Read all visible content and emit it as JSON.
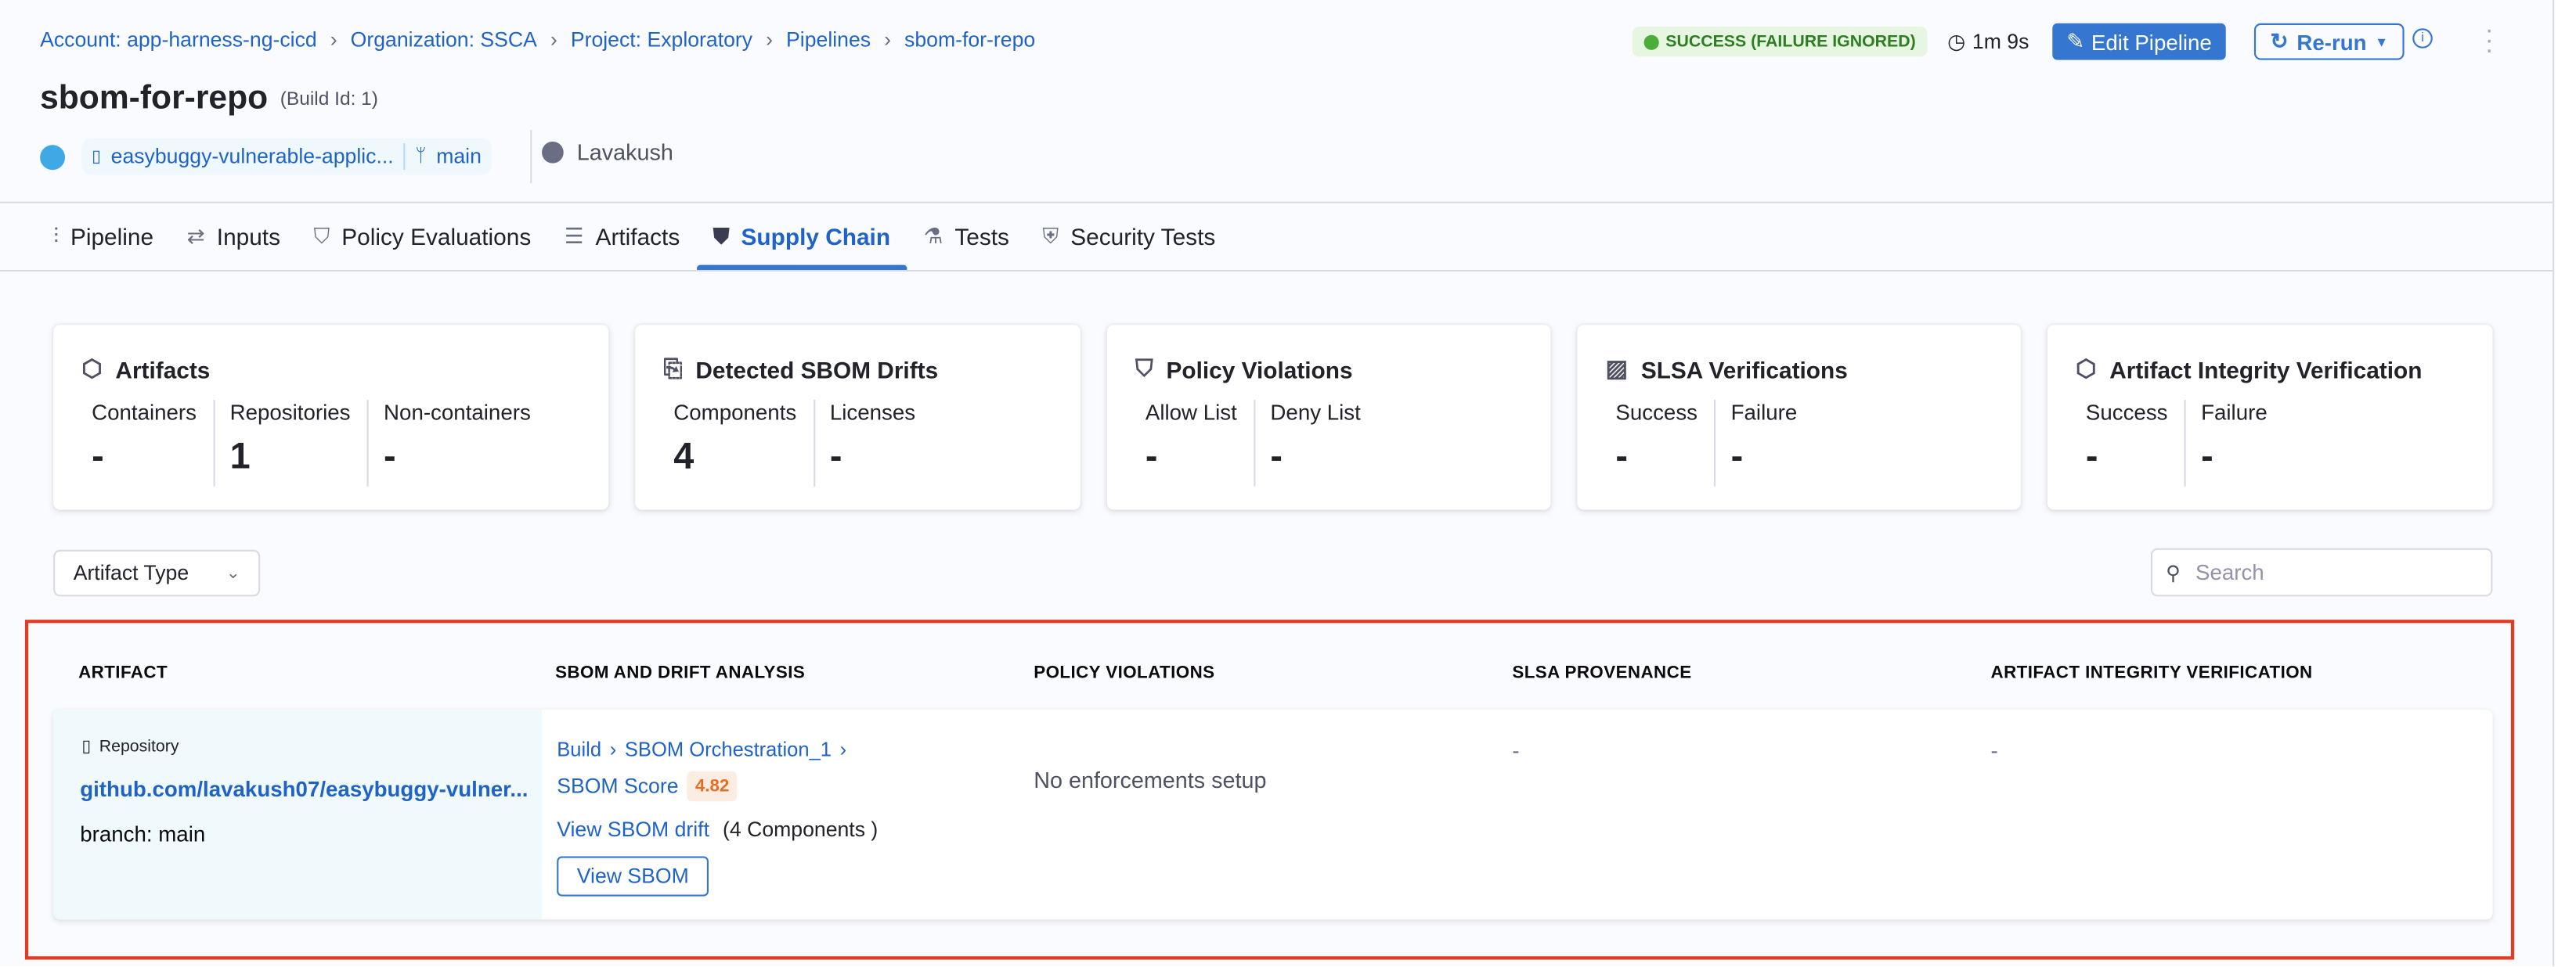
{
  "breadcrumb": [
    "Account: app-harness-ng-cicd",
    "Organization: SSCA",
    "Project: Exploratory",
    "Pipelines",
    "sbom-for-repo"
  ],
  "header": {
    "title": "sbom-for-repo",
    "build_id": "(Build Id: 1)",
    "repo": "easybuggy-vulnerable-applic...",
    "branch": "main",
    "user": "Lavakush",
    "status": "SUCCESS (FAILURE IGNORED)",
    "duration": "1m 9s",
    "edit_label": "Edit Pipeline",
    "rerun_label": "Re-run"
  },
  "tabs": [
    {
      "label": "Pipeline",
      "icon": "pipeline-icon"
    },
    {
      "label": "Inputs",
      "icon": "inputs-icon"
    },
    {
      "label": "Policy Evaluations",
      "icon": "shield-check-icon"
    },
    {
      "label": "Artifacts",
      "icon": "artifacts-icon"
    },
    {
      "label": "Supply Chain",
      "icon": "supply-chain-icon",
      "active": true
    },
    {
      "label": "Tests",
      "icon": "flask-icon"
    },
    {
      "label": "Security Tests",
      "icon": "security-icon"
    }
  ],
  "cards": [
    {
      "title": "Artifacts",
      "cols": [
        {
          "label": "Containers",
          "value": "-"
        },
        {
          "label": "Repositories",
          "value": "1"
        },
        {
          "label": "Non-containers",
          "value": "-"
        }
      ]
    },
    {
      "title": "Detected SBOM Drifts",
      "cols": [
        {
          "label": "Components",
          "value": "4"
        },
        {
          "label": "Licenses",
          "value": "-"
        }
      ]
    },
    {
      "title": "Policy Violations",
      "cols": [
        {
          "label": "Allow List",
          "value": "-"
        },
        {
          "label": "Deny List",
          "value": "-"
        }
      ]
    },
    {
      "title": "SLSA Verifications",
      "cols": [
        {
          "label": "Success",
          "value": "-"
        },
        {
          "label": "Failure",
          "value": "-"
        }
      ]
    },
    {
      "title": "Artifact Integrity Verification",
      "cols": [
        {
          "label": "Success",
          "value": "-"
        },
        {
          "label": "Failure",
          "value": "-"
        }
      ]
    }
  ],
  "filters": {
    "artifact_type": "Artifact Type",
    "search_placeholder": "Search"
  },
  "table": {
    "headers": [
      "ARTIFACT",
      "SBOM AND DRIFT ANALYSIS",
      "POLICY VIOLATIONS",
      "SLSA PROVENANCE",
      "ARTIFACT INTEGRITY VERIFICATION"
    ],
    "rows": [
      {
        "type": "Repository",
        "name": "github.com/lavakush07/easybuggy-vulner...",
        "branch": "branch: main",
        "path": [
          "Build",
          "SBOM Orchestration_1"
        ],
        "score_label": "SBOM Score",
        "score": "4.82",
        "drift_link": "View SBOM drift",
        "drift_count": "(4 Components )",
        "view_sbom": "View SBOM",
        "policy": "No enforcements setup",
        "slsa": "-",
        "integrity": "-"
      }
    ]
  },
  "colors": {
    "accent": "#3576d1",
    "success": "#2e7d22",
    "highlight": "#e23b23",
    "score": "#e56e24"
  }
}
